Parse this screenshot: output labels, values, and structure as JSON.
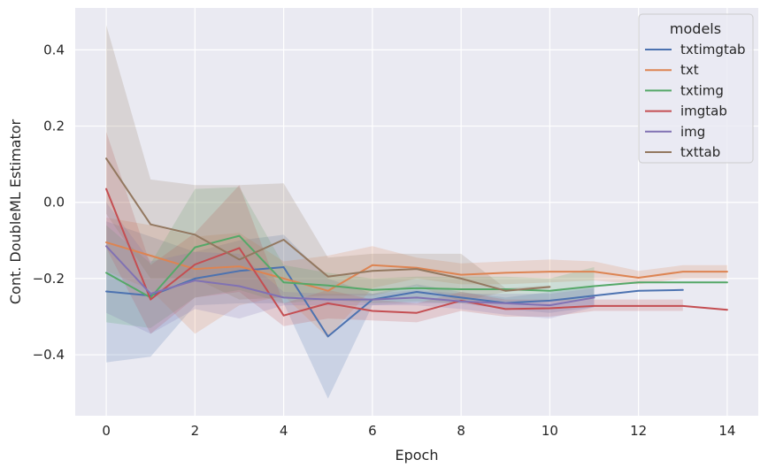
{
  "chart_data": {
    "type": "line",
    "title": "",
    "xlabel": "Epoch",
    "ylabel": "Cont. DoubleML Estimator",
    "xlim": [
      -0.7,
      14.7
    ],
    "ylim": [
      -0.56,
      0.51
    ],
    "xticks": [
      0,
      2,
      4,
      6,
      8,
      10,
      12,
      14
    ],
    "xtick_labels": [
      "0",
      "2",
      "4",
      "6",
      "8",
      "10",
      "12",
      "14"
    ],
    "yticks": [
      -0.4,
      -0.2,
      0.0,
      0.2,
      0.4
    ],
    "ytick_labels": [
      "−0.4",
      "−0.2",
      "0.0",
      "0.2",
      "0.4"
    ],
    "grid": true,
    "background": "#eaeaf2",
    "legend": {
      "title": "models",
      "placement": "top-right"
    },
    "series": [
      {
        "name": "txtimgtab",
        "color": "#4c72b0",
        "x": [
          0,
          1,
          2,
          3,
          4,
          5,
          6,
          7,
          8,
          9,
          10,
          11,
          12,
          13
        ],
        "y": [
          -0.234,
          -0.245,
          -0.2,
          -0.18,
          -0.17,
          -0.352,
          -0.255,
          -0.235,
          -0.25,
          -0.264,
          -0.258,
          -0.245,
          -0.232,
          -0.23
        ],
        "lower": [
          -0.42,
          -0.405,
          -0.27,
          -0.265,
          -0.265,
          -0.515,
          -0.27,
          -0.265,
          -0.265,
          -0.28,
          -0.29,
          -0.275,
          null,
          null
        ],
        "upper": [
          -0.05,
          -0.09,
          -0.13,
          -0.1,
          -0.085,
          -0.2,
          -0.24,
          -0.215,
          -0.235,
          -0.25,
          -0.235,
          -0.22,
          null,
          null
        ]
      },
      {
        "name": "txt",
        "color": "#dd8452",
        "x": [
          0,
          1,
          2,
          3,
          4,
          5,
          6,
          7,
          8,
          9,
          10,
          11,
          12,
          13,
          14
        ],
        "y": [
          -0.105,
          -0.14,
          -0.175,
          -0.168,
          -0.2,
          -0.232,
          -0.165,
          -0.172,
          -0.19,
          -0.185,
          -0.182,
          -0.182,
          -0.198,
          -0.182,
          -0.182
        ],
        "lower": [
          -0.18,
          -0.23,
          -0.345,
          -0.27,
          -0.245,
          -0.355,
          -0.225,
          -0.2,
          -0.215,
          -0.215,
          -0.21,
          -0.205,
          -0.215,
          -0.2,
          -0.2
        ],
        "upper": [
          -0.04,
          -0.06,
          -0.09,
          -0.08,
          -0.155,
          -0.14,
          -0.115,
          -0.145,
          -0.16,
          -0.155,
          -0.15,
          -0.155,
          -0.18,
          -0.165,
          -0.165
        ]
      },
      {
        "name": "txtimg",
        "color": "#55a868",
        "x": [
          0,
          1,
          2,
          3,
          4,
          5,
          6,
          7,
          8,
          9,
          10,
          11,
          12,
          13,
          14
        ],
        "y": [
          -0.185,
          -0.25,
          -0.118,
          -0.088,
          -0.21,
          -0.218,
          -0.23,
          -0.225,
          -0.228,
          -0.228,
          -0.232,
          -0.22,
          -0.21,
          -0.21,
          -0.21
        ],
        "lower": [
          -0.315,
          -0.33,
          -0.25,
          -0.23,
          -0.265,
          -0.255,
          -0.265,
          -0.26,
          -0.265,
          -0.26,
          -0.26,
          -0.255,
          null,
          null,
          null
        ],
        "upper": [
          -0.06,
          -0.16,
          0.035,
          0.04,
          -0.165,
          -0.185,
          -0.2,
          -0.195,
          -0.195,
          -0.195,
          -0.2,
          -0.17,
          null,
          null,
          null
        ]
      },
      {
        "name": "imgtab",
        "color": "#c44e52",
        "x": [
          0,
          1,
          2,
          3,
          4,
          5,
          6,
          7,
          8,
          9,
          10,
          11,
          12,
          13,
          14
        ],
        "y": [
          0.035,
          -0.255,
          -0.163,
          -0.12,
          -0.297,
          -0.265,
          -0.285,
          -0.29,
          -0.258,
          -0.28,
          -0.278,
          -0.272,
          -0.272,
          -0.272,
          -0.282
        ],
        "lower": [
          -0.12,
          -0.345,
          -0.25,
          -0.235,
          -0.325,
          -0.305,
          -0.31,
          -0.315,
          -0.285,
          -0.3,
          -0.3,
          -0.285,
          -0.285,
          -0.285,
          null
        ],
        "upper": [
          0.185,
          -0.165,
          -0.08,
          0.045,
          -0.265,
          -0.23,
          -0.255,
          -0.265,
          -0.235,
          -0.255,
          -0.255,
          -0.255,
          -0.255,
          -0.255,
          null
        ]
      },
      {
        "name": "img",
        "color": "#8172b3",
        "x": [
          0,
          1,
          2,
          3,
          4,
          5,
          6,
          7,
          8,
          9,
          10,
          11
        ],
        "y": [
          -0.115,
          -0.24,
          -0.205,
          -0.22,
          -0.25,
          -0.255,
          -0.255,
          -0.25,
          -0.26,
          -0.265,
          -0.27,
          -0.25
        ],
        "lower": [
          -0.29,
          -0.345,
          -0.28,
          -0.305,
          -0.27,
          -0.27,
          -0.27,
          -0.27,
          -0.28,
          -0.295,
          -0.305,
          -0.275
        ],
        "upper": [
          0.0,
          -0.155,
          -0.13,
          -0.135,
          -0.235,
          -0.24,
          -0.24,
          -0.23,
          -0.24,
          -0.24,
          -0.24,
          -0.225
        ]
      },
      {
        "name": "txttab",
        "color": "#937860",
        "x": [
          0,
          1,
          2,
          3,
          4,
          5,
          6,
          7,
          8,
          9,
          10
        ],
        "y": [
          0.115,
          -0.058,
          -0.085,
          -0.15,
          -0.098,
          -0.195,
          -0.18,
          -0.175,
          -0.2,
          -0.232,
          -0.222
        ],
        "lower": [
          -0.03,
          -0.2,
          -0.2,
          -0.255,
          -0.25,
          -0.245,
          -0.245,
          -0.22,
          -0.26,
          -0.235,
          -0.225
        ],
        "upper": [
          0.465,
          0.06,
          0.045,
          0.045,
          0.05,
          -0.145,
          -0.135,
          -0.135,
          -0.135,
          -0.225,
          -0.218
        ]
      }
    ]
  }
}
